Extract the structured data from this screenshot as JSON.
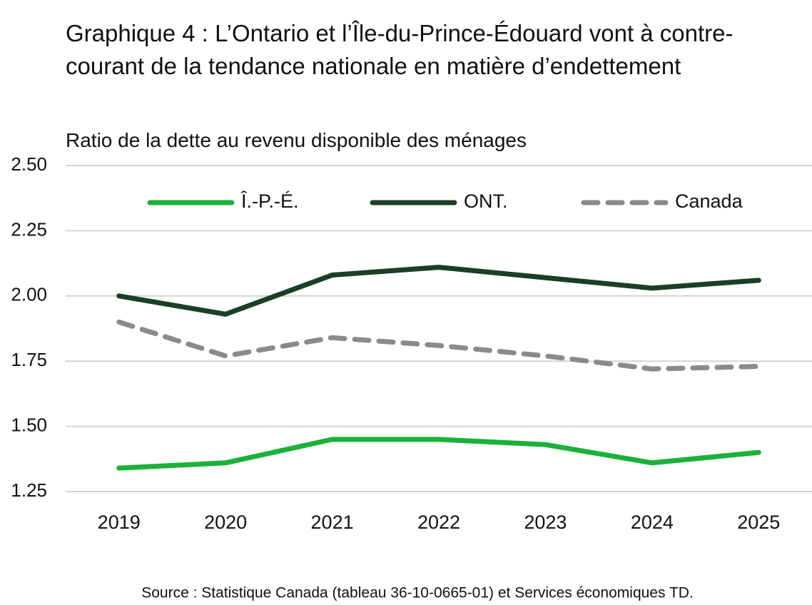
{
  "chart_data": {
    "type": "line",
    "title": "Graphique 4 : L’Ontario et l’Île-du-Prince-Édouard vont à contre-courant de la tendance nationale en matière d’endettement",
    "subtitle": "Ratio de la dette au revenu disponible des ménages",
    "source": "Source : Statistique Canada (tableau 36-10-0665-01) et Services économiques TD.",
    "categories": [
      "2019",
      "2020",
      "2021",
      "2022",
      "2023",
      "2024",
      "2025"
    ],
    "series": [
      {
        "name": "Î.-P.-É.",
        "color": "#1bb13a",
        "style": "solid",
        "values": [
          1.34,
          1.36,
          1.45,
          1.45,
          1.43,
          1.36,
          1.4
        ]
      },
      {
        "name": "ONT.",
        "color": "#1b3f24",
        "style": "solid",
        "values": [
          2.0,
          1.93,
          2.08,
          2.11,
          2.07,
          2.03,
          2.06
        ]
      },
      {
        "name": "Canada",
        "color": "#8a8a8a",
        "style": "dashed",
        "values": [
          1.9,
          1.77,
          1.84,
          1.81,
          1.77,
          1.72,
          1.73
        ]
      }
    ],
    "ylim": [
      1.25,
      2.5
    ],
    "yticks": [
      1.25,
      {
        "value": 1.5,
        "label": "1.50"
      },
      1.75,
      {
        "value": 2,
        "label": "2.00"
      },
      2.25,
      {
        "value": 2.5,
        "label": "2.50"
      }
    ],
    "grid": true,
    "legend": "top"
  }
}
